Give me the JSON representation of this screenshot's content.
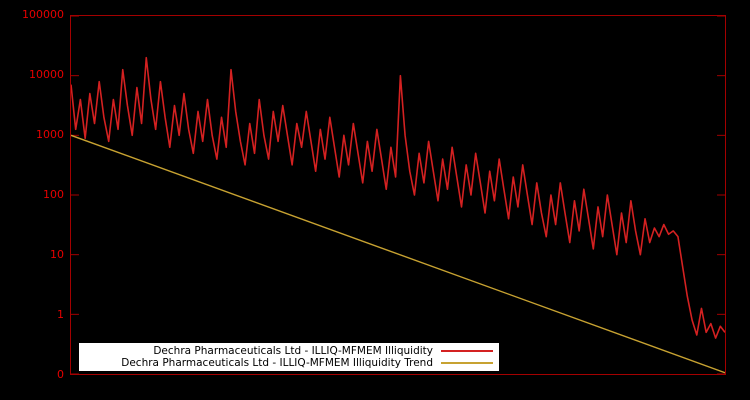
{
  "chart": {
    "background": "#000000",
    "axis_color": "#a40000",
    "tick_label_color": "#e60000",
    "legend_background": "#ffffff"
  },
  "chart_data": {
    "type": "line",
    "title": "",
    "xlabel": "",
    "ylabel": "",
    "y_scale": "log",
    "ylim": [
      0.1,
      100000
    ],
    "ytick_values": [
      100000,
      10000,
      1000,
      100,
      10,
      1,
      0.1
    ],
    "ytick_labels": [
      "100000",
      "10000",
      "1000",
      "100",
      "10",
      "1",
      "0"
    ],
    "x_axis_labels_visible": false,
    "grid": false,
    "legend_position": "bottom-left-inside",
    "series": [
      {
        "name": "Dechra Pharmaceuticals Ltd - ILLIQ-MFMEM Illiquidity",
        "color": "#d42121",
        "width": 1.6,
        "values": [
          7080,
          1260,
          3980,
          890,
          5010,
          1580,
          7940,
          2000,
          790,
          3980,
          1260,
          12600,
          3160,
          1000,
          6310,
          1580,
          20000,
          3980,
          1260,
          7940,
          2000,
          630,
          3160,
          1000,
          5010,
          1260,
          500,
          2510,
          790,
          3980,
          1000,
          400,
          2000,
          630,
          12600,
          2510,
          790,
          320,
          1580,
          500,
          3980,
          1000,
          400,
          2510,
          790,
          3160,
          1000,
          320,
          1580,
          630,
          2510,
          790,
          250,
          1260,
          400,
          2000,
          630,
          200,
          1000,
          320,
          1580,
          500,
          160,
          790,
          250,
          1260,
          400,
          125,
          630,
          200,
          10000,
          1000,
          250,
          100,
          500,
          160,
          790,
          250,
          80,
          400,
          125,
          630,
          200,
          63,
          320,
          100,
          500,
          160,
          50,
          250,
          80,
          400,
          125,
          40,
          200,
          63,
          320,
          100,
          32,
          160,
          50,
          20,
          100,
          32,
          160,
          50,
          16,
          80,
          25,
          125,
          40,
          12.5,
          63,
          20,
          100,
          32,
          10,
          50,
          16,
          80,
          25,
          10,
          40,
          16,
          28,
          20,
          32,
          22,
          25,
          20,
          6.3,
          2,
          0.8,
          0.45,
          1.26,
          0.5,
          0.7,
          0.4,
          0.63,
          0.5
        ]
      },
      {
        "name": "Dechra Pharmaceuticals Ltd - ILLIQ-MFMEM Illiquidity Trend",
        "color": "#c7a231",
        "width": 1.4,
        "x": [
          0,
          139
        ],
        "values": [
          1000,
          0.105
        ]
      }
    ]
  }
}
